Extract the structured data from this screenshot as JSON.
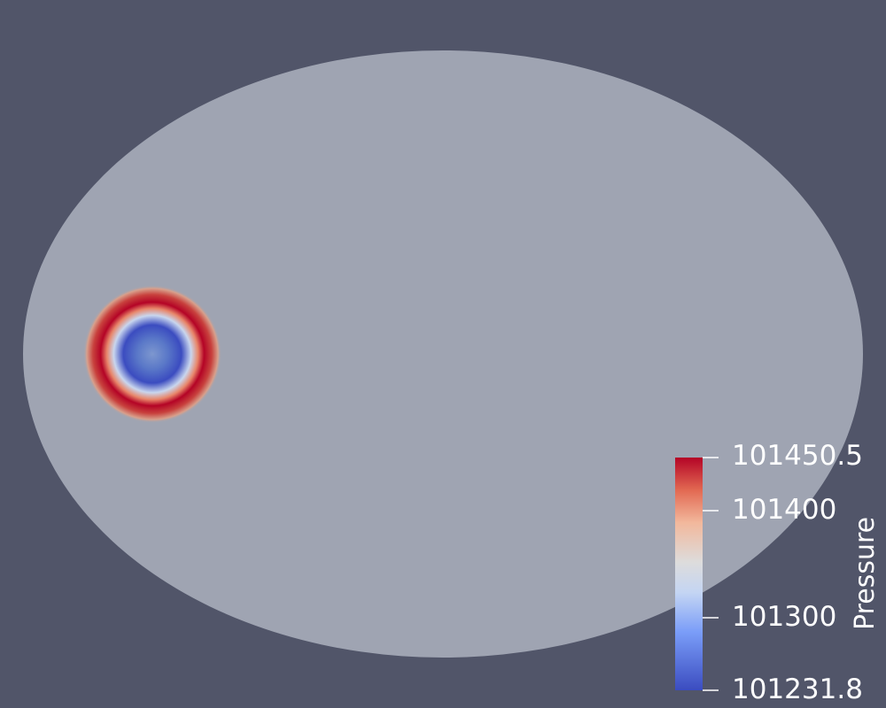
{
  "colors": {
    "background": "#515569",
    "domain": "#9fa4b2",
    "colormap_low": "#3b4cc0",
    "colormap_mid": "#dddddd",
    "colormap_high": "#b40426"
  },
  "colormap_name": "Cool to Warm",
  "legend": {
    "title": "Pressure",
    "range": [
      101231.8,
      101450.5
    ],
    "tick_labels": [
      "101450.5",
      "101400",
      "101300",
      "101231.8"
    ],
    "tick_values": [
      101450.5,
      101400,
      101300,
      101231.8
    ]
  }
}
